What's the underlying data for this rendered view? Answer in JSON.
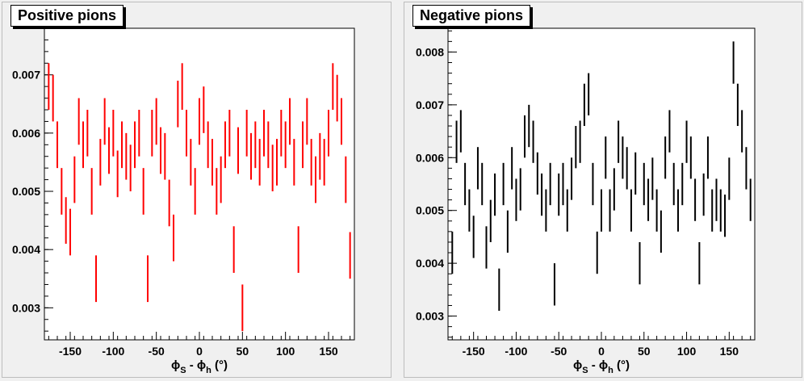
{
  "chart_data": [
    {
      "type": "scatter",
      "title": "Positive pions",
      "xlabel": "ϕ_S - ϕ_h (°)",
      "xlim": [
        -180,
        180
      ],
      "ylim": [
        0.00245,
        0.0078
      ],
      "x_ticks": [
        -150,
        -100,
        -50,
        0,
        50,
        100,
        150
      ],
      "y_ticks": [
        0.003,
        0.004,
        0.005,
        0.006,
        0.007
      ],
      "y_tick_labels": [
        "0.003",
        "0.004",
        "0.005",
        "0.006",
        "0.007"
      ],
      "color": "#ff0000",
      "style": "vertical error bars",
      "x": [
        -175,
        -170,
        -165,
        -160,
        -155,
        -150,
        -145,
        -140,
        -135,
        -130,
        -125,
        -120,
        -115,
        -110,
        -105,
        -100,
        -95,
        -90,
        -85,
        -80,
        -75,
        -70,
        -65,
        -60,
        -55,
        -50,
        -45,
        -40,
        -35,
        -30,
        -25,
        -20,
        -15,
        -10,
        -5,
        0,
        5,
        10,
        15,
        20,
        25,
        30,
        35,
        40,
        45,
        50,
        55,
        60,
        65,
        70,
        75,
        80,
        85,
        90,
        95,
        100,
        105,
        110,
        115,
        120,
        125,
        130,
        135,
        140,
        145,
        150,
        155,
        160,
        165,
        170,
        175
      ],
      "y": [
        0.0068,
        0.0066,
        0.0058,
        0.005,
        0.0045,
        0.0043,
        0.0052,
        0.0062,
        0.0058,
        0.006,
        0.005,
        0.0035,
        0.0055,
        0.0062,
        0.0057,
        0.006,
        0.0053,
        0.0058,
        0.0056,
        0.0054,
        0.0058,
        0.006,
        0.005,
        0.0035,
        0.006,
        0.0062,
        0.0057,
        0.0056,
        0.0048,
        0.0042,
        0.0065,
        0.0068,
        0.006,
        0.0055,
        0.005,
        0.0062,
        0.0064,
        0.0058,
        0.0055,
        0.005,
        0.0052,
        0.0058,
        0.006,
        0.004,
        0.0057,
        0.003,
        0.006,
        0.0056,
        0.0058,
        0.0055,
        0.006,
        0.0058,
        0.0054,
        0.0055,
        0.006,
        0.0058,
        0.0062,
        0.0055,
        0.004,
        0.0058,
        0.0062,
        0.0055,
        0.0052,
        0.0056,
        0.0055,
        0.006,
        0.0068,
        0.0066,
        0.0062,
        0.0052,
        0.0039
      ],
      "err": [
        0.0004,
        0.0004,
        0.0004,
        0.0004,
        0.0004,
        0.0004,
        0.0004,
        0.0004,
        0.0004,
        0.0004,
        0.0004,
        0.0004,
        0.0004,
        0.0004,
        0.0004,
        0.0004,
        0.0004,
        0.0004,
        0.0004,
        0.0004,
        0.0004,
        0.0004,
        0.0004,
        0.0004,
        0.0004,
        0.0004,
        0.0004,
        0.0004,
        0.0004,
        0.0004,
        0.0004,
        0.0004,
        0.0004,
        0.0004,
        0.0004,
        0.0004,
        0.0004,
        0.0004,
        0.0004,
        0.0004,
        0.0004,
        0.0004,
        0.0004,
        0.0004,
        0.0004,
        0.0004,
        0.0004,
        0.0004,
        0.0004,
        0.0004,
        0.0004,
        0.0004,
        0.0004,
        0.0004,
        0.0004,
        0.0004,
        0.0004,
        0.0004,
        0.0004,
        0.0004,
        0.0004,
        0.0004,
        0.0004,
        0.0004,
        0.0004,
        0.0004,
        0.0004,
        0.0004,
        0.0004,
        0.0004,
        0.0004
      ]
    },
    {
      "type": "scatter",
      "title": "Negative pions",
      "xlabel": "ϕ_S - ϕ_h (°)",
      "xlim": [
        -180,
        180
      ],
      "ylim": [
        0.00255,
        0.00845
      ],
      "x_ticks": [
        -150,
        -100,
        -50,
        0,
        50,
        100,
        150
      ],
      "y_ticks": [
        0.003,
        0.004,
        0.005,
        0.006,
        0.007,
        0.008
      ],
      "y_tick_labels": [
        "0.003",
        "0.004",
        "0.005",
        "0.006",
        "0.007",
        "0.008"
      ],
      "color": "#000000",
      "style": "vertical error bars",
      "x": [
        -175,
        -170,
        -165,
        -160,
        -155,
        -150,
        -145,
        -140,
        -135,
        -130,
        -125,
        -120,
        -115,
        -110,
        -105,
        -100,
        -95,
        -90,
        -85,
        -80,
        -75,
        -70,
        -65,
        -60,
        -55,
        -50,
        -45,
        -40,
        -35,
        -30,
        -25,
        -20,
        -15,
        -10,
        -5,
        0,
        5,
        10,
        15,
        20,
        25,
        30,
        35,
        40,
        45,
        50,
        55,
        60,
        65,
        70,
        75,
        80,
        85,
        90,
        95,
        100,
        105,
        110,
        115,
        120,
        125,
        130,
        135,
        140,
        145,
        150,
        155,
        160,
        165,
        170,
        175
      ],
      "y": [
        0.0042,
        0.0063,
        0.0065,
        0.0055,
        0.005,
        0.0045,
        0.0058,
        0.0055,
        0.0043,
        0.0048,
        0.0053,
        0.0035,
        0.0055,
        0.0046,
        0.0058,
        0.0052,
        0.0054,
        0.0064,
        0.0066,
        0.0063,
        0.0057,
        0.0053,
        0.005,
        0.0055,
        0.0036,
        0.0053,
        0.0055,
        0.005,
        0.0056,
        0.0062,
        0.0063,
        0.007,
        0.0072,
        0.0055,
        0.0042,
        0.005,
        0.006,
        0.005,
        0.0054,
        0.0063,
        0.006,
        0.0058,
        0.005,
        0.0057,
        0.004,
        0.0055,
        0.0052,
        0.0056,
        0.005,
        0.0046,
        0.006,
        0.0065,
        0.0055,
        0.005,
        0.0055,
        0.0063,
        0.006,
        0.0052,
        0.004,
        0.0053,
        0.006,
        0.005,
        0.0052,
        0.005,
        0.0049,
        0.0056,
        0.0078,
        0.007,
        0.0065,
        0.0058,
        0.0052
      ],
      "err": [
        0.0004,
        0.0004,
        0.0004,
        0.0004,
        0.0004,
        0.0004,
        0.0004,
        0.0004,
        0.0004,
        0.0004,
        0.0004,
        0.0004,
        0.0004,
        0.0004,
        0.0004,
        0.0004,
        0.0004,
        0.0004,
        0.0004,
        0.0004,
        0.0004,
        0.0004,
        0.0004,
        0.0004,
        0.0004,
        0.0004,
        0.0004,
        0.0004,
        0.0004,
        0.0004,
        0.0004,
        0.0004,
        0.0004,
        0.0004,
        0.0004,
        0.0004,
        0.0004,
        0.0004,
        0.0004,
        0.0004,
        0.0004,
        0.0004,
        0.0004,
        0.0004,
        0.0004,
        0.0004,
        0.0004,
        0.0004,
        0.0004,
        0.0004,
        0.0004,
        0.0004,
        0.0004,
        0.0004,
        0.0004,
        0.0004,
        0.0004,
        0.0004,
        0.0004,
        0.0004,
        0.0004,
        0.0004,
        0.0004,
        0.0004,
        0.0004,
        0.0004,
        0.0004,
        0.0004,
        0.0004,
        0.0004,
        0.0004
      ]
    }
  ]
}
